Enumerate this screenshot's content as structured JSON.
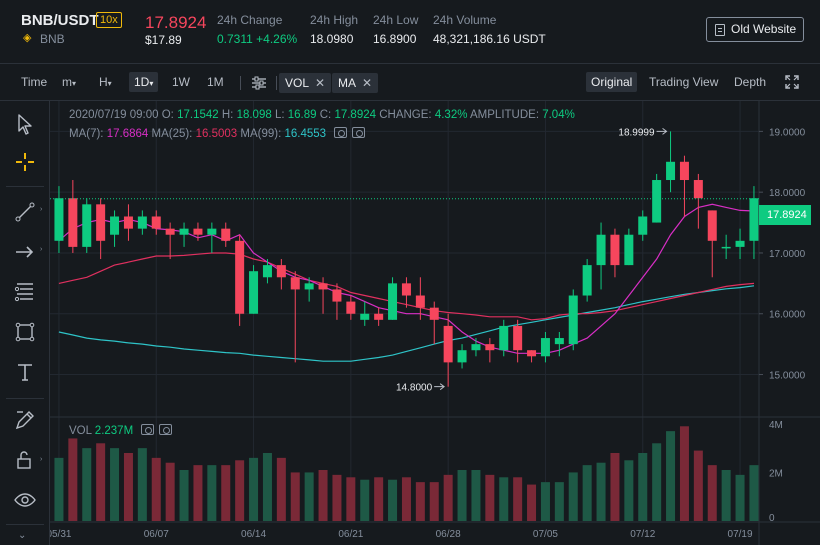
{
  "header": {
    "pair": "BNB/USDT",
    "leverage": "10x",
    "coin": "BNB",
    "coin_icon": "bnb-icon",
    "last_price": "17.8924",
    "last_price_usd": "$17.89",
    "stats": [
      {
        "label": "24h Change",
        "value_abs": "0.7311",
        "value_pct": "+4.26%"
      },
      {
        "label": "24h High",
        "value": "18.0980"
      },
      {
        "label": "24h Low",
        "value": "16.8900"
      },
      {
        "label": "24h Volume",
        "value": "48,321,186.16 USDT"
      }
    ],
    "old_website": "Old Website"
  },
  "toolbar": {
    "time": "Time",
    "minutes": "m",
    "hours": "H",
    "intervals": [
      "1D",
      "1W",
      "1M"
    ],
    "active_interval": "1D",
    "indicators": [
      "VOL",
      "MA"
    ],
    "views": [
      "Original",
      "Trading View",
      "Depth"
    ],
    "active_view": "Original"
  },
  "info": {
    "date": "2020/07/19 09:00",
    "open_label": "O:",
    "open": "17.1542",
    "high_label": "H:",
    "high": "18.098",
    "low_label": "L:",
    "low": "16.89",
    "close_label": "C:",
    "close": "17.8924",
    "change_label": "CHANGE:",
    "change": "4.32%",
    "amplitude_label": "AMPLITUDE:",
    "amplitude": "7.04%",
    "ma7_label": "MA(7):",
    "ma7": "17.6864",
    "ma25_label": "MA(25):",
    "ma25": "16.5003",
    "ma99_label": "MA(99):",
    "ma99": "16.4553",
    "vol_label": "VOL",
    "vol": "2.237M"
  },
  "colors": {
    "up": "#0ecb81",
    "down": "#f6465d",
    "up_vol": "#1e5946",
    "down_vol": "#7a2937",
    "ma7": "#d82ec5",
    "ma25": "#e0305f",
    "ma99": "#2ec4c8",
    "accent": "#f0b90b"
  },
  "chart_data": {
    "type": "candlestick",
    "price_axis_ticks": [
      "19.0000",
      "18.0000",
      "17.0000",
      "16.0000",
      "15.0000"
    ],
    "price_range": [
      14.4,
      19.5
    ],
    "volume_axis_ticks": [
      "4M",
      "2M",
      "0"
    ],
    "volume_range": [
      0,
      4.2
    ],
    "date_ticks": [
      "05/31",
      "06/07",
      "06/14",
      "06/21",
      "06/28",
      "07/05",
      "07/12",
      "07/19"
    ],
    "date_tick_index": [
      0,
      7,
      14,
      21,
      28,
      35,
      42,
      49
    ],
    "last_price_label": "17.8924",
    "last_price": 17.8924,
    "high_marker": {
      "label": "18.9999",
      "index": 44
    },
    "low_marker": {
      "label": "14.8000",
      "index": 28
    },
    "candles": [
      [
        17.2,
        17.9,
        17.0,
        18.1
      ],
      [
        17.9,
        17.1,
        17.0,
        18.2
      ],
      [
        17.1,
        17.8,
        17.0,
        17.9
      ],
      [
        17.8,
        17.2,
        16.9,
        17.9
      ],
      [
        17.3,
        17.6,
        17.1,
        17.7
      ],
      [
        17.6,
        17.4,
        17.2,
        17.8
      ],
      [
        17.4,
        17.6,
        17.3,
        17.7
      ],
      [
        17.6,
        17.4,
        17.3,
        17.7
      ],
      [
        17.4,
        17.3,
        16.9,
        17.5
      ],
      [
        17.3,
        17.4,
        17.1,
        17.5
      ],
      [
        17.4,
        17.3,
        17.2,
        17.5
      ],
      [
        17.3,
        17.4,
        17.0,
        17.5
      ],
      [
        17.4,
        17.2,
        17.1,
        17.5
      ],
      [
        17.2,
        16.0,
        15.8,
        17.3
      ],
      [
        16.0,
        16.7,
        16.0,
        16.8
      ],
      [
        16.6,
        16.8,
        16.5,
        16.9
      ],
      [
        16.8,
        16.6,
        16.4,
        16.9
      ],
      [
        16.6,
        16.4,
        15.2,
        16.7
      ],
      [
        16.4,
        16.5,
        16.2,
        16.6
      ],
      [
        16.5,
        16.4,
        16.0,
        16.6
      ],
      [
        16.4,
        16.2,
        15.9,
        16.5
      ],
      [
        16.2,
        16.0,
        15.9,
        16.3
      ],
      [
        15.9,
        16.0,
        15.8,
        16.2
      ],
      [
        16.0,
        15.9,
        15.8,
        16.1
      ],
      [
        15.9,
        16.5,
        15.9,
        16.6
      ],
      [
        16.5,
        16.3,
        16.1,
        16.6
      ],
      [
        16.3,
        16.1,
        15.9,
        16.6
      ],
      [
        16.1,
        15.9,
        15.5,
        16.2
      ],
      [
        15.8,
        15.2,
        14.8,
        16.0
      ],
      [
        15.2,
        15.4,
        15.1,
        15.5
      ],
      [
        15.4,
        15.5,
        15.3,
        15.6
      ],
      [
        15.5,
        15.4,
        15.2,
        15.6
      ],
      [
        15.4,
        15.8,
        15.3,
        15.9
      ],
      [
        15.8,
        15.4,
        15.2,
        15.9
      ],
      [
        15.4,
        15.3,
        15.2,
        15.4
      ],
      [
        15.3,
        15.6,
        15.2,
        15.7
      ],
      [
        15.5,
        15.6,
        15.3,
        15.7
      ],
      [
        15.5,
        16.3,
        15.4,
        16.4
      ],
      [
        16.3,
        16.8,
        16.2,
        16.9
      ],
      [
        16.8,
        17.3,
        16.4,
        17.5
      ],
      [
        17.3,
        16.8,
        16.6,
        17.4
      ],
      [
        16.8,
        17.3,
        16.8,
        17.4
      ],
      [
        17.3,
        17.6,
        17.2,
        17.7
      ],
      [
        17.5,
        18.2,
        17.5,
        18.3
      ],
      [
        18.2,
        18.5,
        18.0,
        19.0
      ],
      [
        18.5,
        18.2,
        17.6,
        18.6
      ],
      [
        18.2,
        17.9,
        17.4,
        18.3
      ],
      [
        17.7,
        17.2,
        16.6,
        17.7
      ],
      [
        17.1,
        17.1,
        16.9,
        17.3
      ],
      [
        17.1,
        17.2,
        16.9,
        17.4
      ],
      [
        17.2,
        17.9,
        16.9,
        18.1
      ]
    ],
    "volumes": [
      2.6,
      3.4,
      3.0,
      3.2,
      3.0,
      2.8,
      3.0,
      2.6,
      2.4,
      2.1,
      2.3,
      2.3,
      2.3,
      2.5,
      2.6,
      2.8,
      2.6,
      2.0,
      2.0,
      2.1,
      1.9,
      1.8,
      1.7,
      1.8,
      1.7,
      1.8,
      1.6,
      1.6,
      1.9,
      2.1,
      2.1,
      1.9,
      1.8,
      1.8,
      1.5,
      1.6,
      1.6,
      2.0,
      2.3,
      2.4,
      2.8,
      2.5,
      2.8,
      3.2,
      3.7,
      3.9,
      2.9,
      2.3,
      2.1,
      1.9,
      2.3
    ],
    "ma7": [
      17.2,
      17.4,
      17.5,
      17.55,
      17.5,
      17.55,
      17.5,
      17.4,
      17.38,
      17.35,
      17.25,
      17.3,
      17.2,
      17.3,
      17.0,
      16.85,
      16.7,
      16.6,
      16.55,
      16.45,
      16.35,
      16.3,
      16.2,
      16.1,
      16.05,
      16.0,
      16.0,
      15.95,
      15.9,
      15.7,
      15.55,
      15.45,
      15.4,
      15.35,
      15.35,
      15.35,
      15.4,
      15.5,
      15.6,
      15.8,
      16.0,
      16.3,
      16.6,
      16.9,
      17.3,
      17.6,
      17.75,
      17.8,
      17.75,
      17.7,
      17.69
    ],
    "ma25": [
      16.5,
      16.55,
      16.6,
      16.7,
      16.8,
      16.85,
      16.9,
      16.95,
      16.95,
      16.96,
      16.98,
      17.0,
      17.0,
      16.98,
      16.9,
      16.85,
      16.75,
      16.65,
      16.55,
      16.5,
      16.45,
      16.35,
      16.3,
      16.25,
      16.2,
      16.15,
      16.1,
      16.05,
      16.02,
      16.0,
      15.98,
      15.95,
      15.95,
      15.95,
      15.9,
      15.92,
      15.98,
      16.0,
      16.0,
      16.02,
      16.05,
      16.1,
      16.15,
      16.2,
      16.25,
      16.3,
      16.35,
      16.4,
      16.45,
      16.48,
      16.5
    ],
    "ma99": [
      15.7,
      15.65,
      15.6,
      15.57,
      15.55,
      15.52,
      15.5,
      15.47,
      15.45,
      15.42,
      15.4,
      15.38,
      15.36,
      15.35,
      15.32,
      15.3,
      15.28,
      15.26,
      15.24,
      15.22,
      15.22,
      15.22,
      15.25,
      15.28,
      15.32,
      15.38,
      15.44,
      15.5,
      15.56,
      15.6,
      15.66,
      15.72,
      15.78,
      15.82,
      15.86,
      15.9,
      15.94,
      15.98,
      16.02,
      16.06,
      16.1,
      16.15,
      16.2,
      16.24,
      16.28,
      16.32,
      16.35,
      16.38,
      16.41,
      16.43,
      16.46
    ]
  }
}
